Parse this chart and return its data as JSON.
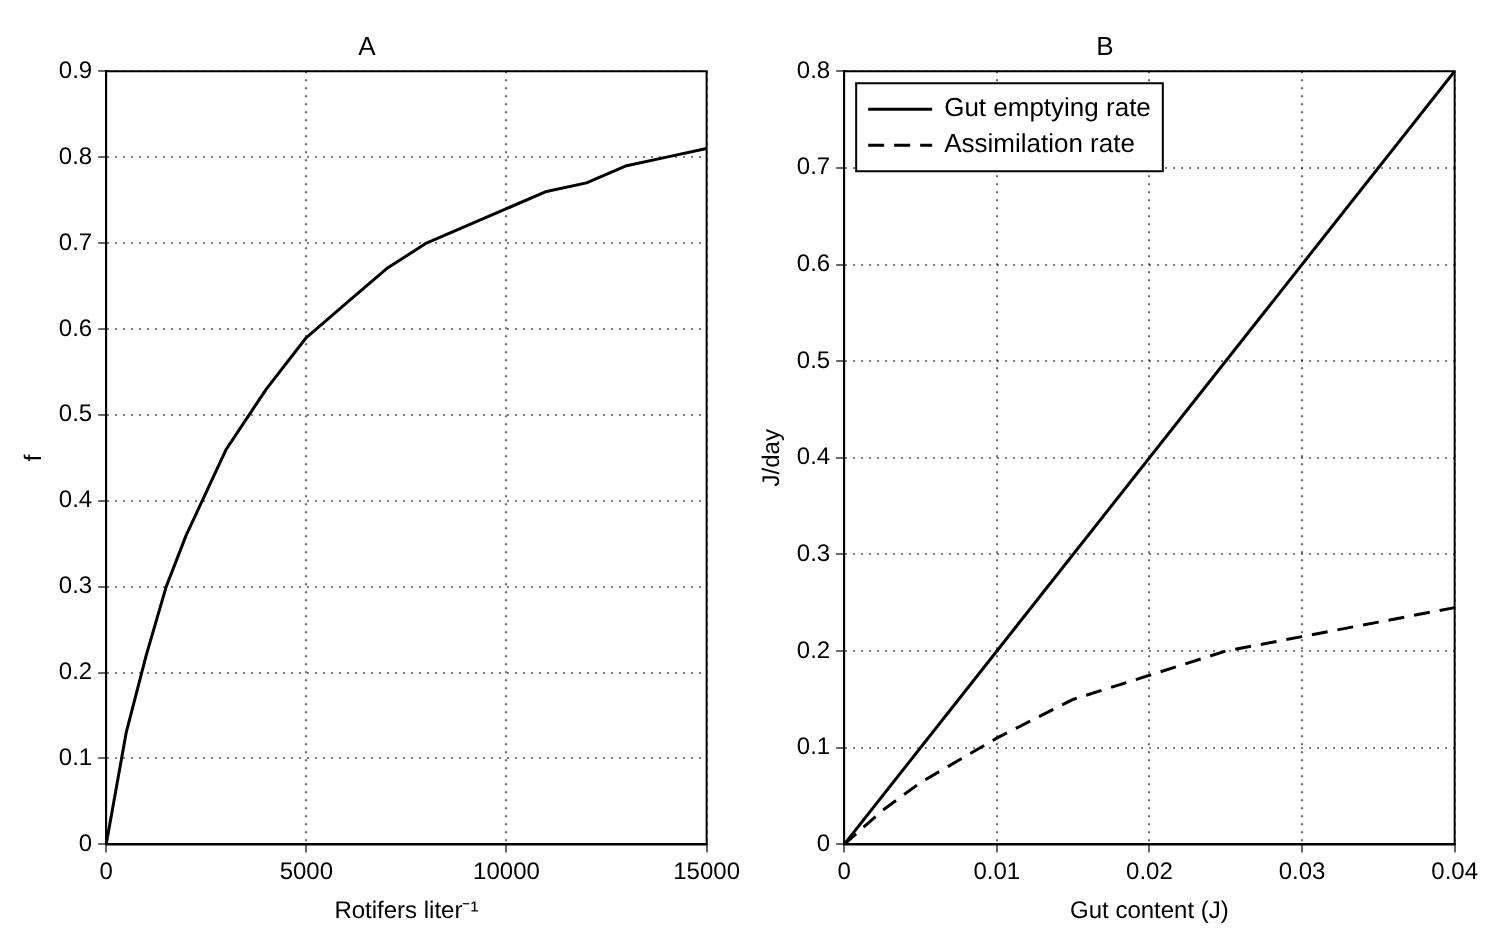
{
  "chart_data": [
    {
      "type": "line",
      "title": "A",
      "xlabel": "Rotifers liter⁻¹",
      "ylabel": "f",
      "xlim": [
        0,
        15000
      ],
      "xticks": [
        0,
        5000,
        10000,
        15000
      ],
      "ylim": [
        0,
        0.9
      ],
      "yticks": [
        0,
        0.1,
        0.2,
        0.3,
        0.4,
        0.5,
        0.6,
        0.7,
        0.8,
        0.9
      ],
      "grid": true,
      "line_style": "solid",
      "marker": "none",
      "series": [
        {
          "color": "#000000",
          "x": [
            0,
            500,
            1000,
            1500,
            2000,
            3000,
            4000,
            5000,
            6000,
            7000,
            8000,
            9000,
            10000,
            11000,
            12000,
            13000,
            14000,
            15000
          ],
          "values": [
            0,
            0.13,
            0.22,
            0.3,
            0.36,
            0.46,
            0.53,
            0.59,
            0.63,
            0.67,
            0.7,
            0.72,
            0.74,
            0.76,
            0.77,
            0.79,
            0.8,
            0.81
          ]
        }
      ]
    },
    {
      "type": "line",
      "title": "B",
      "xlabel": "Gut content (J)",
      "ylabel": "J/day",
      "xlim": [
        0,
        0.04
      ],
      "xticks": [
        0,
        0.01,
        0.02,
        0.03,
        0.04
      ],
      "ylim": [
        0,
        0.8
      ],
      "yticks": [
        0,
        0.1,
        0.2,
        0.3,
        0.4,
        0.5,
        0.6,
        0.7,
        0.8
      ],
      "grid": true,
      "legend": "top left",
      "marker": "none",
      "series": [
        {
          "name": "Gut emptying rate",
          "color": "#000000",
          "line_style": "solid",
          "x": [
            0,
            0.04
          ],
          "values": [
            0,
            0.8
          ]
        },
        {
          "name": "Assimilation rate",
          "color": "#000000",
          "line_style": "dashed",
          "x": [
            0,
            0.0025,
            0.005,
            0.01,
            0.015,
            0.02,
            0.025,
            0.03,
            0.035,
            0.04
          ],
          "values": [
            0,
            0.035,
            0.064,
            0.11,
            0.15,
            0.175,
            0.2,
            0.215,
            0.23,
            0.245
          ]
        }
      ]
    }
  ]
}
